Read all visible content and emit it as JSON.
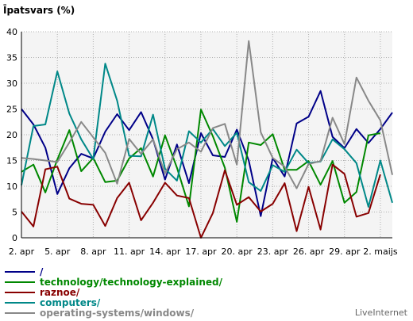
{
  "chart_data": {
    "type": "line",
    "title": "Īpatsvars (%)",
    "ylim": [
      0,
      40
    ],
    "y_ticks": [
      "0",
      "5",
      "10",
      "15",
      "20",
      "25",
      "30",
      "35",
      "40"
    ],
    "x_ticks": [
      "2. apr",
      "5. apr",
      "8. apr",
      "11. apr",
      "14. apr",
      "17. apr",
      "20. apr",
      "23. apr",
      "26. apr",
      "29. apr",
      "2. maijs"
    ],
    "grid": true,
    "legend_position": "bottom-left",
    "series": [
      {
        "name": "/",
        "color": "#000088",
        "values": [
          25,
          22,
          17.5,
          8.5,
          13.5,
          16.3,
          15.4,
          20.6,
          24,
          20.9,
          24.4,
          19.1,
          11.3,
          18.1,
          10.6,
          20.3,
          16,
          15.7,
          21,
          15,
          4.2,
          15.5,
          11.9,
          22.2,
          23.5,
          28.5,
          19.6,
          17.4,
          21.1,
          18.4,
          21.1,
          24.3
        ]
      },
      {
        "name": "technology/technology-explained/",
        "color": "#008800",
        "values": [
          12.8,
          14.2,
          8.8,
          15.2,
          20.9,
          12.9,
          15.5,
          10.8,
          11.1,
          15.4,
          17.4,
          11.9,
          19.9,
          13.6,
          6.1,
          24.9,
          19.7,
          13.6,
          3.1,
          18.5,
          18,
          20.1,
          13.2,
          13.2,
          14.9,
          10.3,
          14.9,
          6.8,
          8.9,
          19.9,
          20.3
        ]
      },
      {
        "name": "raznoe/",
        "color": "#880000",
        "values": [
          5.1,
          2.2,
          13.3,
          13.8,
          7.6,
          6.6,
          6.4,
          2.3,
          7.7,
          10.7,
          3.4,
          6.8,
          10.7,
          8.2,
          7.7,
          0,
          4.8,
          13.1,
          6.4,
          7.9,
          5.1,
          6.6,
          10.6,
          1.3,
          9.9,
          1.6,
          14.2,
          12.4,
          4.1,
          4.8,
          12.3
        ]
      },
      {
        "name": "computers/",
        "color": "#008888",
        "values": [
          10.2,
          21.7,
          22,
          32.3,
          24.1,
          19.1,
          15.3,
          33.8,
          26.6,
          15.9,
          15.8,
          23.9,
          13.4,
          11.1,
          20.7,
          18.5,
          21.1,
          17.8,
          20.4,
          10.8,
          9.1,
          14.1,
          12.8,
          17.1,
          14.5,
          14.8,
          19.1,
          17.2,
          14.5,
          6,
          15,
          6.8
        ]
      },
      {
        "name": "operating-systems/windows/",
        "color": "#888888",
        "values": [
          15.5,
          15.3,
          15,
          14.7,
          18.5,
          22.5,
          19.5,
          16.5,
          10.5,
          19.2,
          16.3,
          19.1,
          12.5,
          17.2,
          18.5,
          16.7,
          21.3,
          22.1,
          14.2,
          38.2,
          20.5,
          15.5,
          13.8,
          9.6,
          14.3,
          14.9,
          23.3,
          18.2,
          31.1,
          26.6,
          22.8,
          12.2
        ]
      }
    ]
  },
  "branding": "LiveInternet"
}
